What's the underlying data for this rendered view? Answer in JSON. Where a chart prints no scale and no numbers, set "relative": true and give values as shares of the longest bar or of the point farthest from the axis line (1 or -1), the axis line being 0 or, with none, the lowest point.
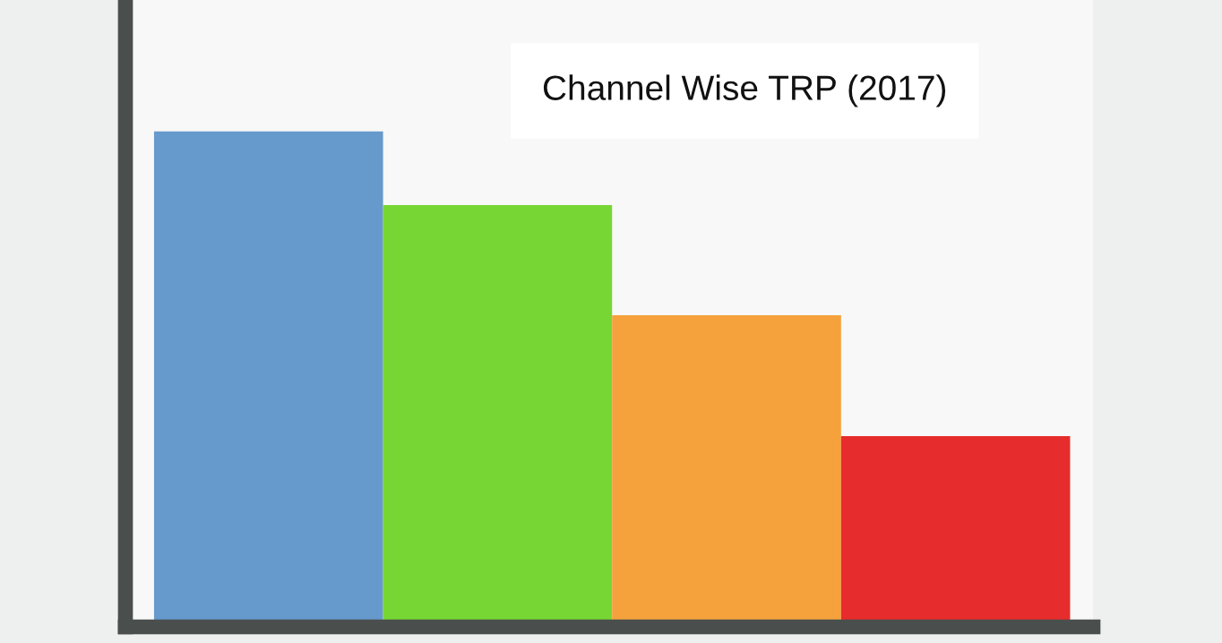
{
  "chart_data": {
    "type": "bar",
    "title": "Channel Wise TRP (2017)",
    "relative": true,
    "categories": [
      null,
      null,
      null,
      null
    ],
    "values": [
      1,
      0.851,
      0.629,
      0.385
    ],
    "colors": [
      "#6699cc",
      "#77d633",
      "#f5a23c",
      "#e62c2c"
    ],
    "grid": false
  }
}
